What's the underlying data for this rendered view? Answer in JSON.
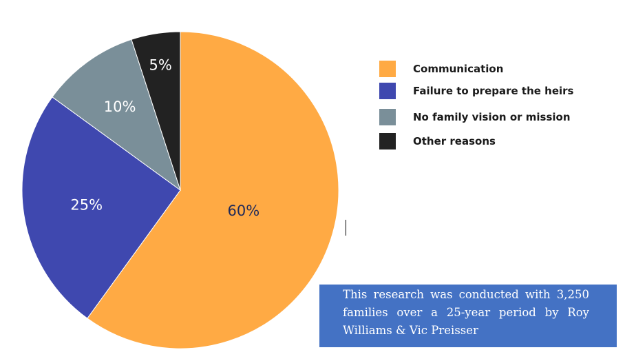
{
  "chart_data": {
    "type": "pie",
    "categories": [
      "Communication",
      "Failure to prepare the heirs",
      "No family vision or mission",
      "Other reasons"
    ],
    "values": [
      60,
      25,
      10,
      5
    ],
    "data_labels": [
      "60%",
      "25%",
      "10%",
      "5%"
    ],
    "colors": [
      "#ffaa44",
      "#3f48af",
      "#7a8f99",
      "#222222"
    ],
    "label_colors": [
      "#1f2a5a",
      "#ffffff",
      "#ffffff",
      "#ffffff"
    ],
    "start_angle": "12 o'clock",
    "direction": "clockwise",
    "legend_position": "right"
  },
  "legend": {
    "items": [
      {
        "label": "Communication",
        "color": "#ffaa44"
      },
      {
        "label": "Failure to prepare the heirs",
        "color": "#3f48af"
      },
      {
        "label": "No family vision or mission",
        "color": "#7a8f99"
      },
      {
        "label": "Other reasons",
        "color": "#222222"
      }
    ]
  },
  "note": {
    "text": "This research was conducted with 3,250 families over a 25-year period by Roy Williams & Vic Preisser",
    "background": "#4472c4"
  }
}
